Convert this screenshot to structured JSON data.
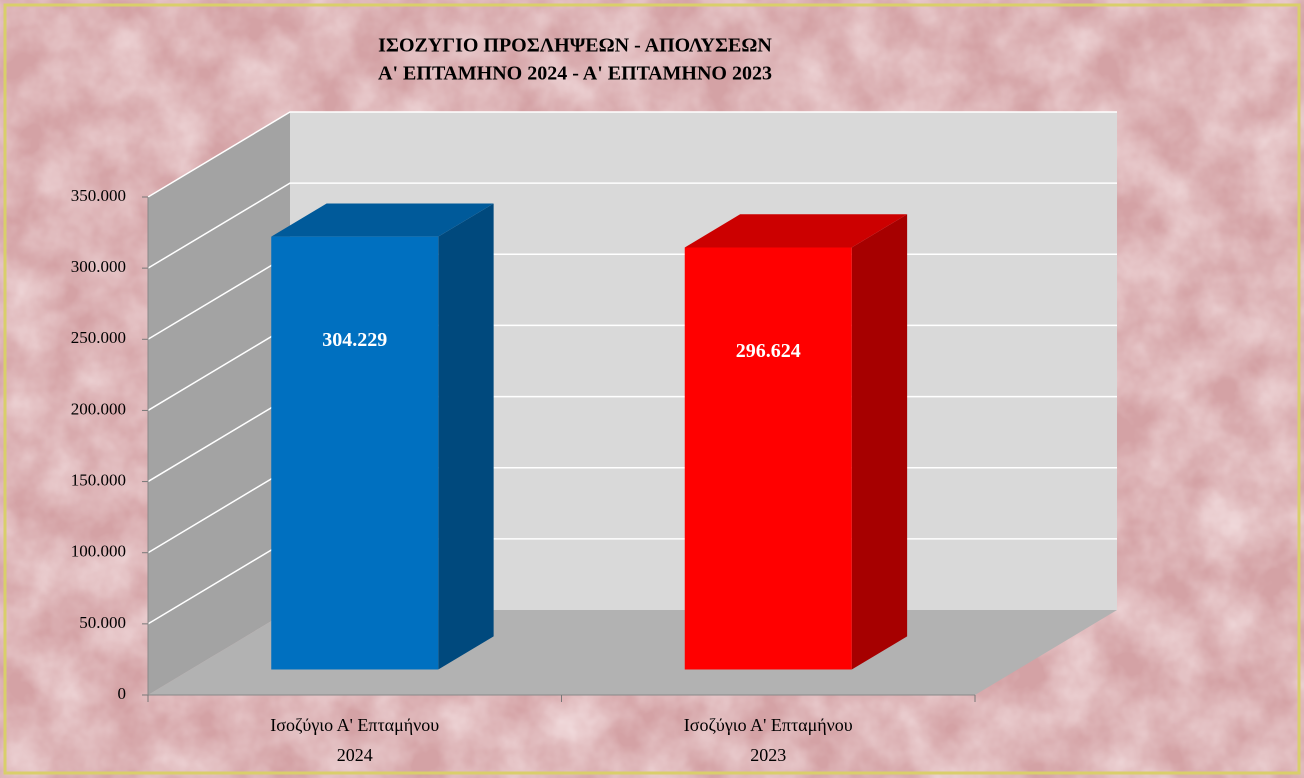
{
  "chart_data": {
    "type": "bar3d",
    "title": [
      "ΙΣΟΖΥΓΙΟ  ΠΡΟΣΛΗΨΕΩΝ  -  ΑΠΟΛΥΣΕΩΝ",
      "Α' ΕΠΤΑΜΗΝΟ 2024  -  Α' ΕΠΤΑΜΗΝΟ 2023"
    ],
    "categories": [
      [
        "Ισοζύγιο Α' Επταμήνου",
        "2024"
      ],
      [
        "Ισοζύγιο Α' Επταμήνου",
        "2023"
      ]
    ],
    "values": [
      304229,
      296624
    ],
    "value_labels": [
      "304.229",
      "296.624"
    ],
    "colors": [
      "#0070c0",
      "#ff0000"
    ],
    "ylim": [
      0,
      350000
    ],
    "yticks": [
      0,
      {
        "value": 50000,
        "label": "50.000"
      },
      {
        "value": 100000,
        "label": "100.000"
      },
      {
        "value": 150000,
        "label": "150.000"
      },
      {
        "value": 200000,
        "label": "200.000"
      },
      {
        "value": 250000,
        "label": "250.000"
      },
      {
        "value": 300000,
        "label": "300.000"
      },
      {
        "value": 350000,
        "label": "350.000"
      }
    ],
    "grid": true
  }
}
